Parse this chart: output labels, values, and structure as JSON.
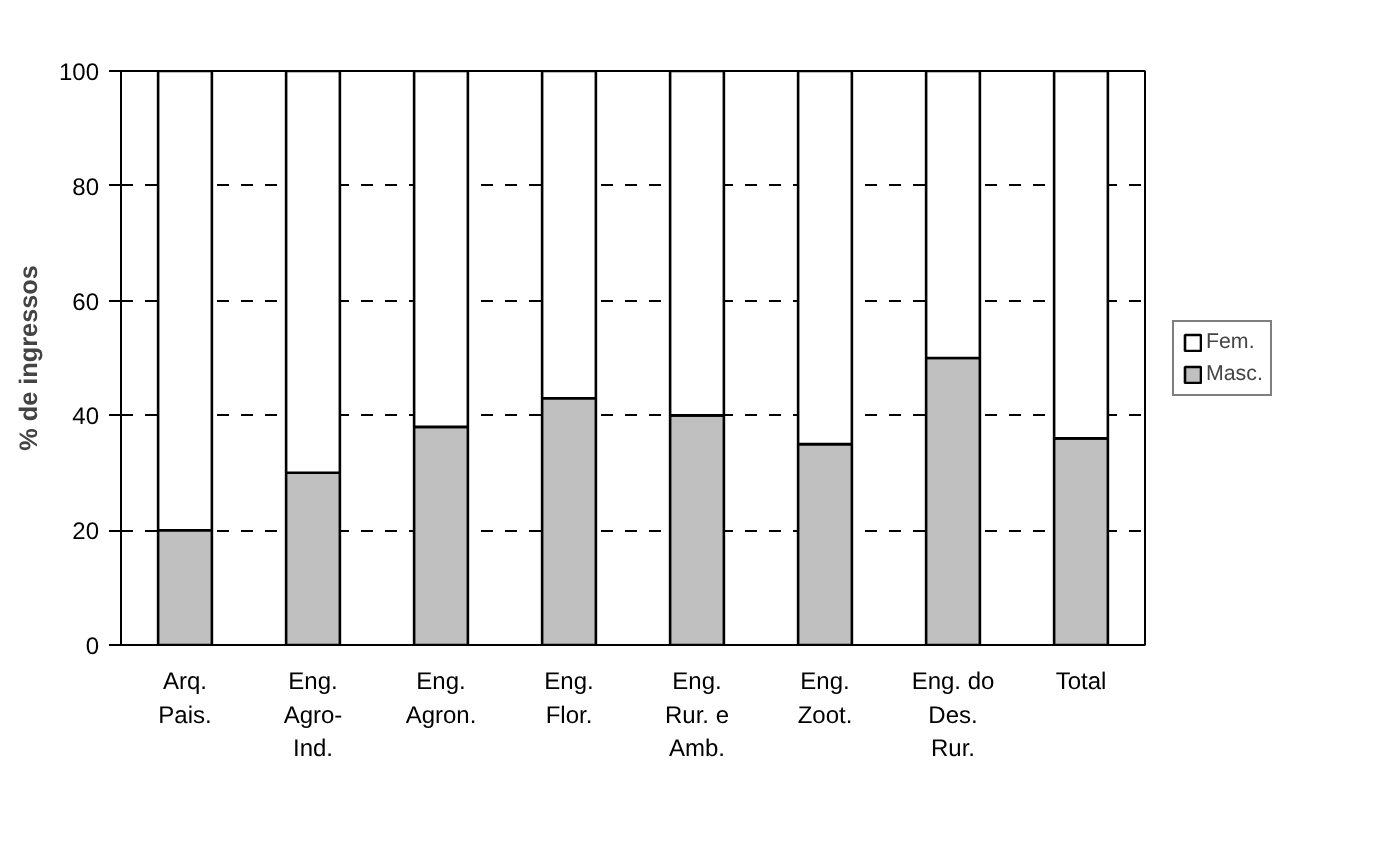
{
  "chart_data": {
    "type": "bar",
    "stacked": true,
    "ylabel": "% de ingressos",
    "categories": [
      "Arq.\nPais.",
      "Eng.\nAgro-\nInd.",
      "Eng.\nAgron.",
      "Eng.\nFlor.",
      "Eng.\nRur. e\nAmb.",
      "Eng.\nZoot.",
      "Eng. do\nDes.\nRur.",
      "Total"
    ],
    "series": [
      {
        "name": "Masc.",
        "color": "#c0c0c0",
        "values": [
          20,
          30,
          38,
          43,
          40,
          35,
          50,
          36
        ]
      },
      {
        "name": "Fem.",
        "color": "#ffffff",
        "values": [
          80,
          70,
          62,
          57,
          60,
          65,
          50,
          64
        ]
      }
    ],
    "ylim": [
      0,
      100
    ],
    "yticks": [
      0,
      20,
      40,
      60,
      80,
      100
    ],
    "grid": "y",
    "legend": "right"
  }
}
